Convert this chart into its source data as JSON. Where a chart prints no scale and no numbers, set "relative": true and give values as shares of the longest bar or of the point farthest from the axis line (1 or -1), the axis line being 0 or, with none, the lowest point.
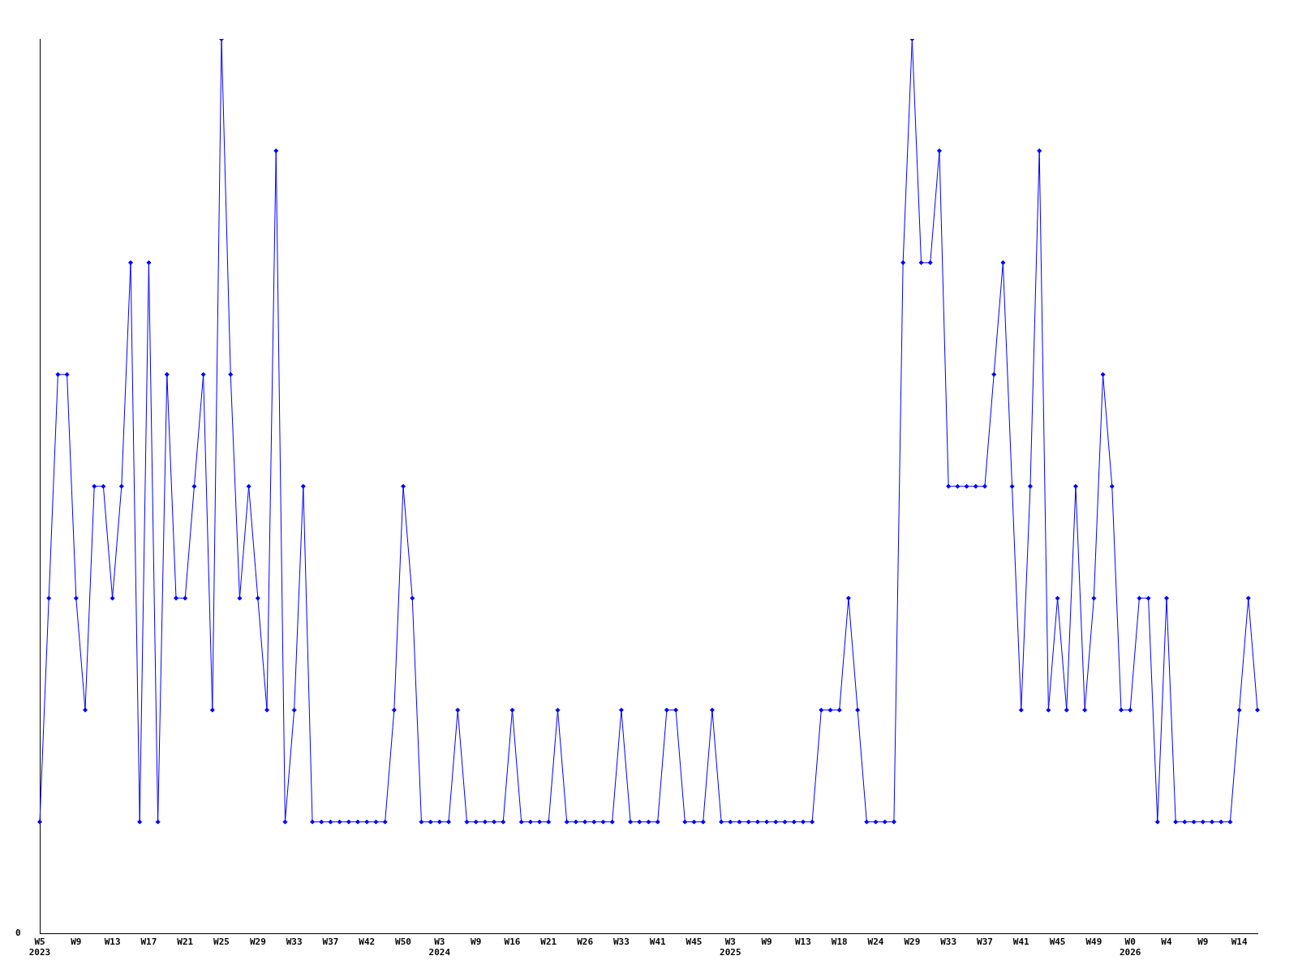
{
  "chart_data": {
    "type": "line",
    "relative": true,
    "marker": "diamond",
    "grid": false,
    "legend": false,
    "categories": [
      "W5\n2023",
      null,
      null,
      null,
      "W9",
      null,
      null,
      null,
      "W13",
      null,
      null,
      null,
      "W17",
      null,
      null,
      null,
      "W21",
      null,
      null,
      null,
      "W25",
      null,
      null,
      null,
      "W29",
      null,
      null,
      null,
      "W33",
      null,
      null,
      null,
      "W37",
      null,
      null,
      null,
      "W42",
      null,
      null,
      null,
      "W50",
      null,
      null,
      null,
      "W3\n2024",
      null,
      null,
      null,
      "W9",
      null,
      null,
      null,
      "W16",
      null,
      null,
      null,
      "W21",
      null,
      null,
      null,
      "W26",
      null,
      null,
      null,
      "W33",
      null,
      null,
      null,
      "W41",
      null,
      null,
      null,
      "W45",
      null,
      null,
      null,
      "W3\n2025",
      null,
      null,
      null,
      "W9",
      null,
      null,
      null,
      "W13",
      null,
      null,
      null,
      "W18",
      null,
      null,
      null,
      "W24",
      null,
      null,
      null,
      "W29",
      null,
      null,
      null,
      "W33",
      null,
      null,
      null,
      "W37",
      null,
      null,
      null,
      "W41",
      null,
      null,
      null,
      "W45",
      null,
      null,
      null,
      "W49",
      null,
      null,
      null,
      "W0\n2026",
      null,
      null,
      null,
      "W4",
      null,
      null,
      null,
      "W9",
      null,
      null,
      null,
      "W14",
      null,
      null
    ],
    "series": [
      {
        "color": "#0000ff",
        "values": [
          0.125,
          0.375,
          0.625,
          0.625,
          0.375,
          0.25,
          0.5,
          0.5,
          0.375,
          0.5,
          0.75,
          0.125,
          0.75,
          0.125,
          0.625,
          0.375,
          0.375,
          0.5,
          0.625,
          0.25,
          1,
          0.625,
          0.375,
          0.5,
          0.375,
          0.25,
          0.875,
          0.125,
          0.25,
          0.5,
          0.125,
          0.125,
          0.125,
          0.125,
          0.125,
          0.125,
          0.125,
          0.125,
          0.125,
          0.25,
          0.5,
          0.375,
          0.125,
          0.125,
          0.125,
          0.125,
          0.25,
          0.125,
          0.125,
          0.125,
          0.125,
          0.125,
          0.25,
          0.125,
          0.125,
          0.125,
          0.125,
          0.25,
          0.125,
          0.125,
          0.125,
          0.125,
          0.125,
          0.125,
          0.25,
          0.125,
          0.125,
          0.125,
          0.125,
          0.25,
          0.25,
          0.125,
          0.125,
          0.125,
          0.25,
          0.125,
          0.125,
          0.125,
          0.125,
          0.125,
          0.125,
          0.125,
          0.125,
          0.125,
          0.125,
          0.125,
          0.25,
          0.25,
          0.25,
          0.375,
          0.25,
          0.125,
          0.125,
          0.125,
          0.125,
          0.75,
          1,
          0.75,
          0.75,
          0.875,
          0.5,
          0.5,
          0.5,
          0.5,
          0.5,
          0.625,
          0.75,
          0.5,
          0.25,
          0.5,
          0.875,
          0.25,
          0.375,
          0.25,
          0.5,
          0.25,
          0.375,
          0.625,
          0.5,
          0.25,
          0.25,
          0.375,
          0.375,
          0.125,
          0.375,
          0.125,
          0.125,
          0.125,
          0.125,
          0.125,
          0.125,
          0.125,
          0.25,
          0.375,
          0.25
        ]
      }
    ],
    "annotations": [
      "0"
    ]
  }
}
